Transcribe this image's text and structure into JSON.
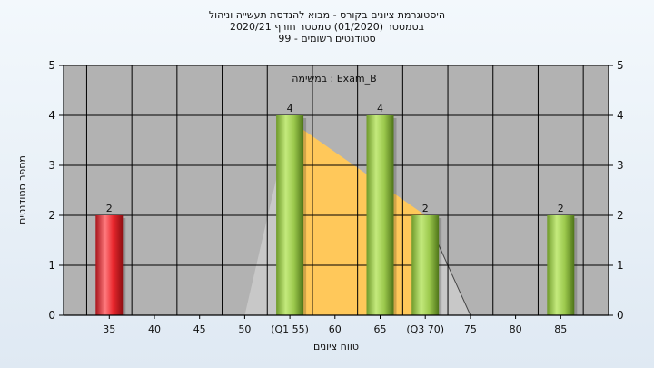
{
  "chart_data": {
    "type": "bar",
    "title_lines": [
      "היסטוגרמת ציונים בקורס - מבוא להנדסת תעשייה וניהול",
      "בסמסטר  (01/2020)  סמסטר חורף 2020/21",
      "סטודנטים רשומים - 99"
    ],
    "annotation": "במשימה : Exam_B",
    "xlabel": "טווח ציונים",
    "ylabel": "מספר סטודנטים",
    "categories": [
      "35",
      "40",
      "45",
      "50",
      "(Q1 55)",
      "60",
      "65",
      "(Q3 70)",
      "75",
      "80",
      "85"
    ],
    "values": [
      2,
      0,
      0,
      0,
      4,
      0,
      4,
      2,
      0,
      0,
      2
    ],
    "bar_colors": [
      "#e8262c",
      "",
      "",
      "",
      "#a3cf52",
      "",
      "#a3cf52",
      "#a3cf52",
      "",
      "",
      "#a3cf52"
    ],
    "value_labels": [
      "2",
      "",
      "",
      "",
      "4",
      "",
      "4",
      "2",
      "",
      "",
      "2"
    ],
    "ylim": [
      0,
      5
    ],
    "yticks": [
      "0",
      "1",
      "2",
      "3",
      "4",
      "5"
    ],
    "grid": true,
    "background_color": "#b2b2b2",
    "distribution_shapes": {
      "quartile_area": {
        "x": [
          55,
          55,
          70,
          70
        ],
        "y": [
          0,
          3.9,
          2.0,
          0
        ],
        "color": "#ffc85a"
      },
      "lower_tail": {
        "x": [
          50,
          55
        ],
        "y": [
          0,
          3.9
        ],
        "color": "#c8c8c8"
      },
      "upper_tail": {
        "x": [
          70,
          75
        ],
        "y": [
          2.0,
          0
        ],
        "color": "#c8c8c8"
      }
    }
  }
}
